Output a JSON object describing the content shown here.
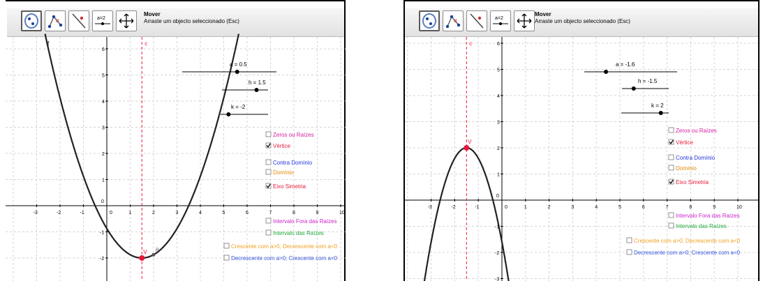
{
  "panels": [
    {
      "toolbar": {
        "mode_title": "Mover",
        "mode_help": "Arraste um objecto seleccionado (Esc)",
        "tools": [
          {
            "name": "tool-select-icon",
            "selected": true
          },
          {
            "name": "tool-points-icon",
            "selected": false
          },
          {
            "name": "tool-line-icon",
            "selected": false
          },
          {
            "name": "tool-slider-icon",
            "selected": false,
            "label": "a=2"
          },
          {
            "name": "tool-move-view-icon",
            "selected": false
          }
        ]
      },
      "axes": {
        "x_ticks": [
          "-3",
          "-2",
          "-1",
          "0",
          "1",
          "2",
          "3",
          "4",
          "5",
          "6",
          "7",
          "8",
          "9",
          "10"
        ],
        "y_ticks": [
          "6",
          "5",
          "4",
          "3",
          "2",
          "1",
          "0",
          "-1",
          "-2"
        ]
      },
      "labels": {
        "curve": "f",
        "axis": "c",
        "vertex": "V",
        "point": "P"
      },
      "sliders": [
        {
          "text": "a = 0.5",
          "value": 0.5
        },
        {
          "text": "h = 1.5",
          "value": 1.5
        },
        {
          "text": "k = -2",
          "value": -2
        }
      ],
      "checkboxes": [
        {
          "label": "Zeros ou Raízes",
          "checked": false,
          "color": "#d61ba1"
        },
        {
          "label": "Vértice",
          "checked": true,
          "color": "#e8193a"
        },
        {
          "label": "Contra Domínio",
          "checked": false,
          "color": "#2233dd"
        },
        {
          "label": "Domínio",
          "checked": false,
          "color": "#e08a00"
        },
        {
          "label": "Eixo Simetria",
          "checked": true,
          "color": "#e8193a"
        },
        {
          "label": "Intervalo Fora das Raízes",
          "checked": false,
          "color": "#cc22cc"
        },
        {
          "label": "Intervalo das Raízes",
          "checked": false,
          "color": "#1faa3a"
        },
        {
          "label": "Crescente com a>0; Decrescente com a<0",
          "checked": false,
          "color": "#f0a020"
        },
        {
          "label": "Decrescente com a>0; Crescente com a<0",
          "checked": false,
          "color": "#3355dd"
        }
      ]
    },
    {
      "toolbar": {
        "mode_title": "Mover",
        "mode_help": "Arraste um objecto seleccionado (Esc)",
        "tools": [
          {
            "name": "tool-select-icon",
            "selected": true
          },
          {
            "name": "tool-points-icon",
            "selected": false
          },
          {
            "name": "tool-line-icon",
            "selected": false
          },
          {
            "name": "tool-slider-icon",
            "selected": false,
            "label": "a=2"
          },
          {
            "name": "tool-move-view-icon",
            "selected": false
          }
        ]
      },
      "axes": {
        "x_ticks": [
          "-3",
          "-2",
          "-1",
          "0",
          "1",
          "2",
          "3",
          "4",
          "5",
          "6",
          "7",
          "8",
          "9",
          "10"
        ],
        "y_ticks": [
          "6",
          "5",
          "4",
          "3",
          "2",
          "1",
          "0",
          "-1",
          "-2",
          "-3"
        ]
      },
      "labels": {
        "curve": "",
        "axis": "c",
        "vertex": "V",
        "point": ""
      },
      "sliders": [
        {
          "text": "a = -1.6",
          "value": -1.6
        },
        {
          "text": "h = -1.5",
          "value": -1.5
        },
        {
          "text": "k = 2",
          "value": 2
        }
      ],
      "checkboxes": [
        {
          "label": "Zeros ou Raízes",
          "checked": false,
          "color": "#d61ba1"
        },
        {
          "label": "Vértice",
          "checked": true,
          "color": "#e8193a"
        },
        {
          "label": "Contra Domínio",
          "checked": false,
          "color": "#2233dd"
        },
        {
          "label": "Domínio",
          "checked": false,
          "color": "#e08a00"
        },
        {
          "label": "Eixo Simetria",
          "checked": true,
          "color": "#e8193a"
        },
        {
          "label": "Intervalo Fora das Raízes",
          "checked": false,
          "color": "#cc22cc"
        },
        {
          "label": "Intervalo das Raízes",
          "checked": false,
          "color": "#1faa3a"
        },
        {
          "label": "Crescente com a>0; Decrescente com a<0",
          "checked": false,
          "color": "#f0a020"
        },
        {
          "label": "Decrescente com a>0; Crescente com a<0",
          "checked": false,
          "color": "#3355dd"
        }
      ]
    }
  ]
}
